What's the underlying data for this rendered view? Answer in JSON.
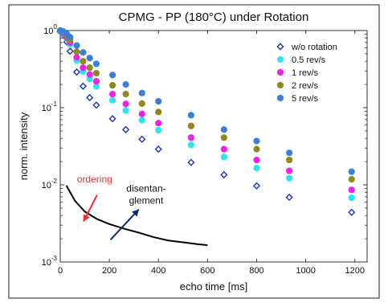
{
  "chart_data": {
    "type": "scatter",
    "title": "CPMG  -  PP (180°C) under Rotation",
    "xlabel": "echo time  [ms]",
    "ylabel": "norm. intensity",
    "xlim": [
      0,
      1250
    ],
    "ylim": [
      0.001,
      1
    ],
    "yscale": "log",
    "x_ticks": [
      0,
      200,
      400,
      600,
      800,
      1000,
      1200
    ],
    "y_ticks": [
      {
        "value": 0.001,
        "base": "10",
        "exp": "-3"
      },
      {
        "value": 0.01,
        "base": "10",
        "exp": "-2"
      },
      {
        "value": 0.1,
        "base": "10",
        "exp": "-1"
      },
      {
        "value": 1,
        "base": "10",
        "exp": "0"
      }
    ],
    "legend_position": "top-right",
    "series": [
      {
        "name": "w/o rotation",
        "marker": "diamond-open",
        "color": "#1f2fbf",
        "x": [
          0,
          13,
          27,
          40,
          67,
          93,
          120,
          147,
          213,
          267,
          333,
          400,
          533,
          667,
          800,
          933,
          1187
        ],
        "y": [
          0.97,
          0.87,
          0.71,
          0.54,
          0.29,
          0.19,
          0.135,
          0.108,
          0.072,
          0.052,
          0.039,
          0.029,
          0.0195,
          0.0135,
          0.0097,
          0.0069,
          0.0044
        ]
      },
      {
        "name": "0.5 rev/s",
        "marker": "circle",
        "color": "#29e5f0",
        "x": [
          0,
          13,
          27,
          40,
          67,
          93,
          120,
          147,
          213,
          267,
          333,
          400,
          533,
          667,
          800,
          933,
          1187
        ],
        "y": [
          0.98,
          0.9,
          0.78,
          0.66,
          0.41,
          0.295,
          0.235,
          0.19,
          0.125,
          0.092,
          0.069,
          0.051,
          0.033,
          0.023,
          0.0165,
          0.0122,
          0.0068
        ]
      },
      {
        "name": "1 rev/s",
        "marker": "circle",
        "color": "#ee22e6",
        "x": [
          0,
          13,
          27,
          40,
          67,
          93,
          120,
          147,
          213,
          267,
          333,
          400,
          533,
          667,
          800,
          933,
          1187
        ],
        "y": [
          0.99,
          0.92,
          0.81,
          0.7,
          0.45,
          0.33,
          0.27,
          0.22,
          0.15,
          0.112,
          0.083,
          0.063,
          0.041,
          0.029,
          0.021,
          0.0152,
          0.0086
        ]
      },
      {
        "name": "2 rev/s",
        "marker": "circle",
        "color": "#8c8a1e",
        "x": [
          0,
          13,
          27,
          40,
          67,
          93,
          120,
          147,
          213,
          267,
          333,
          400,
          533,
          667,
          800,
          933,
          1187
        ],
        "y": [
          1.0,
          0.94,
          0.85,
          0.75,
          0.53,
          0.4,
          0.33,
          0.28,
          0.195,
          0.15,
          0.113,
          0.088,
          0.058,
          0.041,
          0.029,
          0.021,
          0.0118
        ]
      },
      {
        "name": "5 rev/s",
        "marker": "circle",
        "color": "#3c7fd6",
        "x": [
          0,
          13,
          27,
          40,
          67,
          93,
          120,
          147,
          213,
          267,
          333,
          400,
          533,
          667,
          800,
          933,
          1187
        ],
        "y": [
          1.0,
          0.97,
          0.9,
          0.82,
          0.64,
          0.52,
          0.44,
          0.37,
          0.265,
          0.2,
          0.155,
          0.121,
          0.08,
          0.052,
          0.037,
          0.026,
          0.0148
        ]
      }
    ],
    "annotations": {
      "curve": {
        "color": "#000000",
        "x": [
          25,
          60,
          100,
          150,
          200,
          260,
          320,
          380,
          440,
          500,
          560,
          600
        ],
        "y": [
          0.0098,
          0.0062,
          0.0045,
          0.0036,
          0.0031,
          0.0027,
          0.0024,
          0.0021,
          0.0019,
          0.0018,
          0.0017,
          0.00165
        ]
      },
      "ordering": {
        "label": "ordering",
        "color": "#e8312a",
        "arrow_from": [
          150,
          0.0074
        ],
        "arrow_to": [
          95,
          0.00335
        ],
        "label_at": [
          140,
          0.0108
        ]
      },
      "disentanglement": {
        "label_lines": [
          "disentan-",
          "glement"
        ],
        "color": "#0d2a66",
        "arrow_from": [
          205,
          0.00195
        ],
        "arrow_to": [
          320,
          0.0048
        ],
        "label_at": [
          350,
          0.0082
        ]
      }
    }
  }
}
